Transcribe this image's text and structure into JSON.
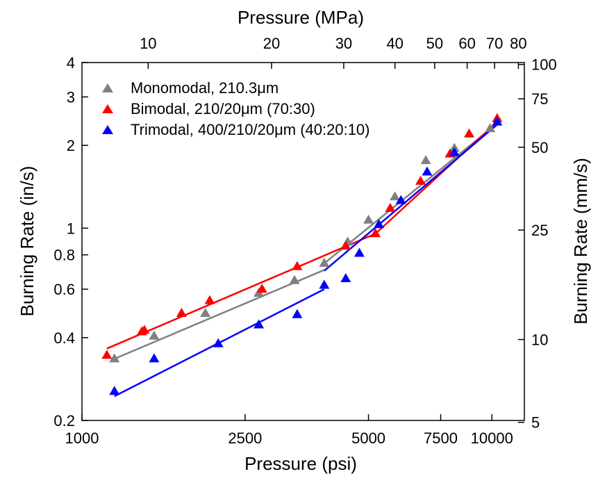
{
  "chart_data": {
    "type": "scatter",
    "x_scale": "log",
    "y_scale": "log",
    "xlabel": "Pressure (psi)",
    "x2label": "Pressure (MPa)",
    "ylabel": "Burning Rate (in/s)",
    "y2label": "Burning Rate (mm/s)",
    "xlim": [
      1000,
      12000
    ],
    "ylim": [
      0.2,
      4
    ],
    "x_ticks": [
      {
        "value": 1000,
        "label": "1000"
      },
      {
        "value": 2500,
        "label": "2500"
      },
      {
        "value": 5000,
        "label": "5000"
      },
      {
        "value": 7500,
        "label": "7500"
      },
      {
        "value": 10000,
        "label": "10000"
      }
    ],
    "y_ticks": [
      {
        "value": 0.2,
        "label": "0.2"
      },
      {
        "value": 0.4,
        "label": "0.4"
      },
      {
        "value": 0.6,
        "label": "0.6"
      },
      {
        "value": 0.8,
        "label": "0.8"
      },
      {
        "value": 1,
        "label": "1"
      },
      {
        "value": 2,
        "label": "2"
      },
      {
        "value": 3,
        "label": "3"
      },
      {
        "value": 4,
        "label": "4"
      }
    ],
    "x2_ticks": [
      {
        "value": 10,
        "label": "10"
      },
      {
        "value": 20,
        "label": "20"
      },
      {
        "value": 30,
        "label": "30"
      },
      {
        "value": 40,
        "label": "40"
      },
      {
        "value": 50,
        "label": "50"
      },
      {
        "value": 60,
        "label": "60"
      },
      {
        "value": 70,
        "label": "70"
      },
      {
        "value": 80,
        "label": "80"
      }
    ],
    "y2_ticks": [
      {
        "value": 5,
        "label": "5"
      },
      {
        "value": 10,
        "label": "10"
      },
      {
        "value": 25,
        "label": "25"
      },
      {
        "value": 50,
        "label": "50"
      },
      {
        "value": 75,
        "label": "75"
      },
      {
        "value": 100,
        "label": "100"
      }
    ],
    "grid": false,
    "legend_position": "top-left",
    "series": [
      {
        "name": "Monomodal, 210.3μm",
        "color": "#808080",
        "marker": "triangle",
        "points": [
          {
            "x": 1200,
            "y": 0.335
          },
          {
            "x": 1500,
            "y": 0.405
          },
          {
            "x": 2000,
            "y": 0.49
          },
          {
            "x": 2700,
            "y": 0.58
          },
          {
            "x": 3300,
            "y": 0.645
          },
          {
            "x": 3900,
            "y": 0.745
          },
          {
            "x": 4450,
            "y": 0.89
          },
          {
            "x": 5000,
            "y": 1.07
          },
          {
            "x": 5800,
            "y": 1.3
          },
          {
            "x": 6900,
            "y": 1.76
          },
          {
            "x": 8100,
            "y": 1.95
          },
          {
            "x": 9900,
            "y": 2.3
          }
        ],
        "fits": [
          {
            "x": [
              1200,
              3900
            ],
            "y": [
              0.335,
              0.705
            ]
          },
          {
            "x": [
              3900,
              10300
            ],
            "y": [
              0.745,
              2.4
            ]
          }
        ]
      },
      {
        "name": "Bimodal, 210/20μm (70:30)",
        "color": "#ff0000",
        "marker": "triangle",
        "points": [
          {
            "x": 1150,
            "y": 0.345
          },
          {
            "x": 1400,
            "y": 0.42
          },
          {
            "x": 1420,
            "y": 0.425
          },
          {
            "x": 1750,
            "y": 0.49
          },
          {
            "x": 2050,
            "y": 0.545
          },
          {
            "x": 2750,
            "y": 0.6
          },
          {
            "x": 3350,
            "y": 0.725
          },
          {
            "x": 4400,
            "y": 0.86
          },
          {
            "x": 5200,
            "y": 0.955
          },
          {
            "x": 5650,
            "y": 1.18
          },
          {
            "x": 6700,
            "y": 1.48
          },
          {
            "x": 7900,
            "y": 1.86
          },
          {
            "x": 8800,
            "y": 2.2
          },
          {
            "x": 10300,
            "y": 2.5
          }
        ],
        "fits": [
          {
            "x": [
              1150,
              5200
            ],
            "y": [
              0.365,
              0.955
            ]
          },
          {
            "x": [
              5200,
              10500
            ],
            "y": [
              0.955,
              2.5
            ]
          }
        ]
      },
      {
        "name": "Trimodal, 400/210/20μm (40:20:10)",
        "color": "#0000ff",
        "marker": "triangle",
        "points": [
          {
            "x": 1200,
            "y": 0.255
          },
          {
            "x": 1500,
            "y": 0.335
          },
          {
            "x": 2150,
            "y": 0.38
          },
          {
            "x": 2700,
            "y": 0.445
          },
          {
            "x": 3350,
            "y": 0.485
          },
          {
            "x": 3900,
            "y": 0.62
          },
          {
            "x": 4400,
            "y": 0.655
          },
          {
            "x": 4750,
            "y": 0.81
          },
          {
            "x": 5300,
            "y": 1.03
          },
          {
            "x": 6000,
            "y": 1.26
          },
          {
            "x": 6950,
            "y": 1.6
          },
          {
            "x": 8100,
            "y": 1.88
          },
          {
            "x": 10300,
            "y": 2.43
          }
        ],
        "fits": [
          {
            "x": [
              1200,
              3900
            ],
            "y": [
              0.245,
              0.6
            ]
          },
          {
            "x": [
              3900,
              10300
            ],
            "y": [
              0.7,
              2.38
            ]
          }
        ]
      }
    ]
  }
}
